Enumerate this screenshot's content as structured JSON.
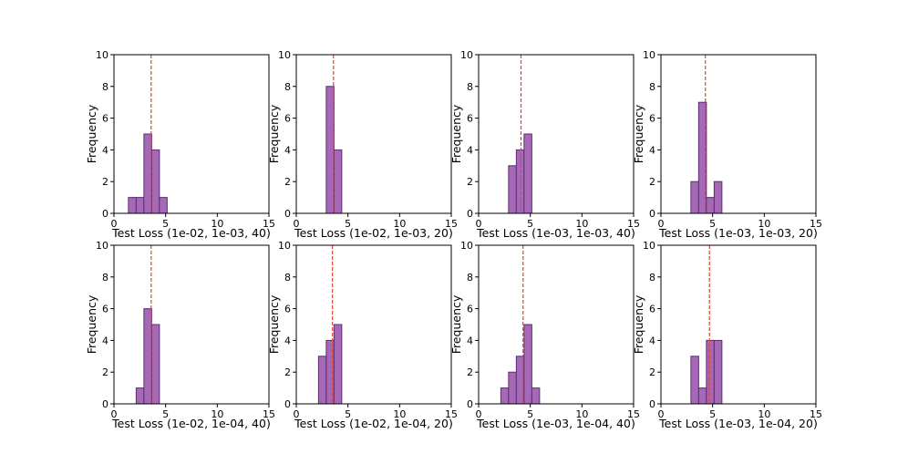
{
  "chart_data": [
    {
      "type": "bar",
      "xlabel": "Test Loss (1e-02, 1e-03, 40)",
      "ylabel": "Frequency",
      "xlim": [
        0,
        15
      ],
      "ylim": [
        0,
        10
      ],
      "xticks": [
        0,
        5,
        10,
        15
      ],
      "yticks": [
        0,
        2,
        4,
        6,
        8,
        10
      ],
      "bin_width": 0.75,
      "bins": [
        {
          "x0": 1.4,
          "count": 1
        },
        {
          "x0": 2.15,
          "count": 1
        },
        {
          "x0": 2.9,
          "count": 5
        },
        {
          "x0": 3.65,
          "count": 4
        },
        {
          "x0": 4.4,
          "count": 1
        }
      ],
      "mean_line": 3.6
    },
    {
      "type": "bar",
      "xlabel": "Test Loss (1e-02, 1e-03, 20)",
      "ylabel": "Frequency",
      "xlim": [
        0,
        15
      ],
      "ylim": [
        0,
        10
      ],
      "xticks": [
        0,
        5,
        10,
        15
      ],
      "yticks": [
        0,
        2,
        4,
        6,
        8,
        10
      ],
      "bin_width": 0.75,
      "bins": [
        {
          "x0": 2.9,
          "count": 8
        },
        {
          "x0": 3.65,
          "count": 4
        }
      ],
      "mean_line": 3.6
    },
    {
      "type": "bar",
      "xlabel": "Test Loss (1e-03, 1e-03, 40)",
      "ylabel": "Frequency",
      "xlim": [
        0,
        15
      ],
      "ylim": [
        0,
        10
      ],
      "xticks": [
        0,
        5,
        10,
        15
      ],
      "yticks": [
        0,
        2,
        4,
        6,
        8,
        10
      ],
      "bin_width": 0.75,
      "bins": [
        {
          "x0": 2.9,
          "count": 3
        },
        {
          "x0": 3.65,
          "count": 4
        },
        {
          "x0": 4.4,
          "count": 5
        }
      ],
      "mean_line": 4.1
    },
    {
      "type": "bar",
      "xlabel": "Test Loss (1e-03, 1e-03, 20)",
      "ylabel": "Frequency",
      "xlim": [
        0,
        15
      ],
      "ylim": [
        0,
        10
      ],
      "xticks": [
        0,
        5,
        10,
        15
      ],
      "yticks": [
        0,
        2,
        4,
        6,
        8,
        10
      ],
      "bin_width": 0.75,
      "bins": [
        {
          "x0": 2.9,
          "count": 2
        },
        {
          "x0": 3.65,
          "count": 7
        },
        {
          "x0": 4.4,
          "count": 1
        },
        {
          "x0": 5.15,
          "count": 2
        }
      ],
      "mean_line": 4.3
    },
    {
      "type": "bar",
      "xlabel": "Test Loss (1e-02, 1e-04, 40)",
      "ylabel": "Frequency",
      "xlim": [
        0,
        15
      ],
      "ylim": [
        0,
        10
      ],
      "xticks": [
        0,
        5,
        10,
        15
      ],
      "yticks": [
        0,
        2,
        4,
        6,
        8,
        10
      ],
      "bin_width": 0.75,
      "bins": [
        {
          "x0": 2.15,
          "count": 1
        },
        {
          "x0": 2.9,
          "count": 6
        },
        {
          "x0": 3.65,
          "count": 5
        }
      ],
      "mean_line": 3.6
    },
    {
      "type": "bar",
      "xlabel": "Test Loss (1e-02, 1e-04, 20)",
      "ylabel": "Frequency",
      "xlim": [
        0,
        15
      ],
      "ylim": [
        0,
        10
      ],
      "xticks": [
        0,
        5,
        10,
        15
      ],
      "yticks": [
        0,
        2,
        4,
        6,
        8,
        10
      ],
      "bin_width": 0.75,
      "bins": [
        {
          "x0": 2.15,
          "count": 3
        },
        {
          "x0": 2.9,
          "count": 4
        },
        {
          "x0": 3.65,
          "count": 5
        }
      ],
      "mean_line": 3.5
    },
    {
      "type": "bar",
      "xlabel": "Test Loss (1e-03, 1e-04, 40)",
      "ylabel": "Frequency",
      "xlim": [
        0,
        15
      ],
      "ylim": [
        0,
        10
      ],
      "xticks": [
        0,
        5,
        10,
        15
      ],
      "yticks": [
        0,
        2,
        4,
        6,
        8,
        10
      ],
      "bin_width": 0.75,
      "bins": [
        {
          "x0": 2.15,
          "count": 1
        },
        {
          "x0": 2.9,
          "count": 2
        },
        {
          "x0": 3.65,
          "count": 3
        },
        {
          "x0": 4.4,
          "count": 5
        },
        {
          "x0": 5.15,
          "count": 1
        }
      ],
      "mean_line": 4.3
    },
    {
      "type": "bar",
      "xlabel": "Test Loss (1e-03, 1e-04, 20)",
      "ylabel": "Frequency",
      "xlim": [
        0,
        15
      ],
      "ylim": [
        0,
        10
      ],
      "xticks": [
        0,
        5,
        10,
        15
      ],
      "yticks": [
        0,
        2,
        4,
        6,
        8,
        10
      ],
      "bin_width": 0.75,
      "bins": [
        {
          "x0": 2.9,
          "count": 3
        },
        {
          "x0": 3.65,
          "count": 1
        },
        {
          "x0": 4.4,
          "count": 4
        },
        {
          "x0": 5.15,
          "count": 4
        }
      ],
      "mean_line": 4.7
    }
  ],
  "colors": {
    "bar_fill": "#a569b8",
    "bar_edge": "#5c2d70",
    "mean_line": "#e8412c",
    "axis": "#000000"
  }
}
